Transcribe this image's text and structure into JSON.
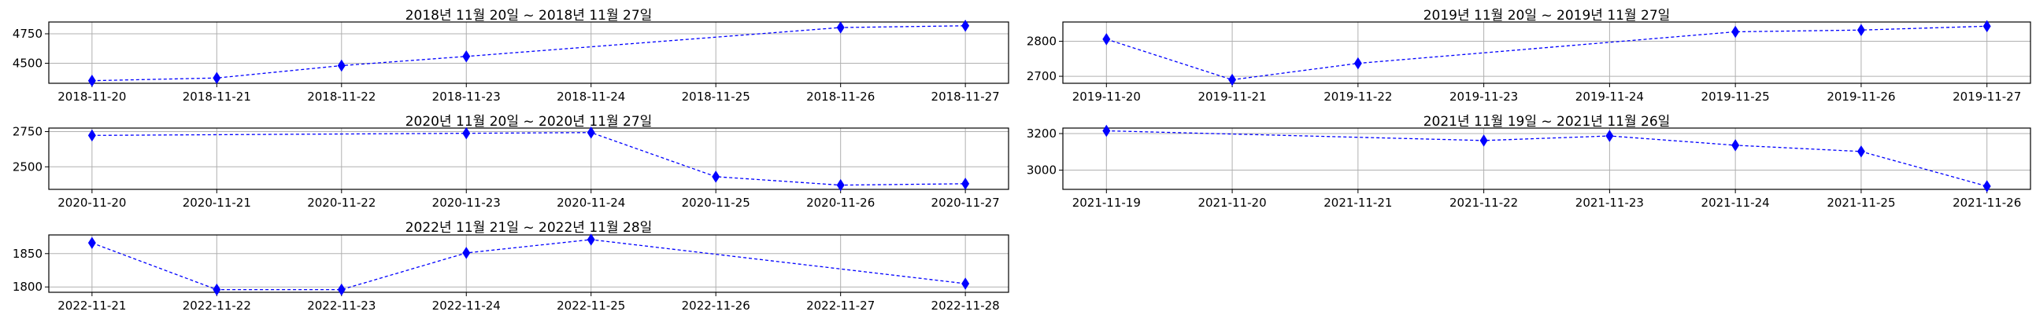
{
  "chart_data": [
    {
      "type": "line",
      "title": "2018년 11월 20일 ~ 2018년 11월 27일",
      "categories": [
        "2018-11-20",
        "2018-11-21",
        "2018-11-22",
        "2018-11-23",
        "2018-11-24",
        "2018-11-25",
        "2018-11-26",
        "2018-11-27"
      ],
      "series": [
        {
          "x": [
            "2018-11-20",
            "2018-11-21",
            "2018-11-22",
            "2018-11-23",
            "2018-11-26",
            "2018-11-27"
          ],
          "values": [
            4352,
            4375,
            4480,
            4558,
            4803,
            4818
          ]
        }
      ],
      "yticks": [
        4500,
        4750
      ],
      "ylim": [
        4330,
        4850
      ],
      "grid": true,
      "color": "#0000ff"
    },
    {
      "type": "line",
      "title": "2019년 11월 20일 ~ 2019년 11월 27일",
      "categories": [
        "2019-11-20",
        "2019-11-21",
        "2019-11-22",
        "2019-11-23",
        "2019-11-24",
        "2019-11-25",
        "2019-11-26",
        "2019-11-27"
      ],
      "series": [
        {
          "x": [
            "2019-11-20",
            "2019-11-21",
            "2019-11-22",
            "2019-11-25",
            "2019-11-26",
            "2019-11-27"
          ],
          "values": [
            2806,
            2690,
            2737,
            2827,
            2832,
            2843
          ]
        }
      ],
      "yticks": [
        2700,
        2800
      ],
      "ylim": [
        2680,
        2855
      ],
      "grid": true,
      "color": "#0000ff"
    },
    {
      "type": "line",
      "title": "2020년 11월 20일 ~ 2020년 11월 27일",
      "categories": [
        "2020-11-20",
        "2020-11-21",
        "2020-11-22",
        "2020-11-23",
        "2020-11-24",
        "2020-11-25",
        "2020-11-26",
        "2020-11-27"
      ],
      "series": [
        {
          "x": [
            "2020-11-20",
            "2020-11-23",
            "2020-11-24",
            "2020-11-25",
            "2020-11-26",
            "2020-11-27"
          ],
          "values": [
            2723,
            2738,
            2743,
            2430,
            2370,
            2380
          ]
        }
      ],
      "yticks": [
        2500,
        2750
      ],
      "ylim": [
        2340,
        2775
      ],
      "grid": true,
      "color": "#0000ff"
    },
    {
      "type": "line",
      "title": "2021년 11월 19일 ~ 2021년 11월 26일",
      "categories": [
        "2021-11-19",
        "2021-11-20",
        "2021-11-21",
        "2021-11-22",
        "2021-11-23",
        "2021-11-24",
        "2021-11-25",
        "2021-11-26"
      ],
      "series": [
        {
          "x": [
            "2021-11-19",
            "2021-11-22",
            "2021-11-23",
            "2021-11-24",
            "2021-11-25",
            "2021-11-26"
          ],
          "values": [
            3215,
            3162,
            3187,
            3136,
            3102,
            2912
          ]
        }
      ],
      "yticks": [
        3000,
        3200
      ],
      "ylim": [
        2895,
        3230
      ],
      "grid": true,
      "color": "#0000ff"
    },
    {
      "type": "line",
      "title": "2022년 11월 21일 ~ 2022년 11월 28일",
      "categories": [
        "2022-11-21",
        "2022-11-22",
        "2022-11-23",
        "2022-11-24",
        "2022-11-25",
        "2022-11-26",
        "2022-11-27",
        "2022-11-28"
      ],
      "series": [
        {
          "x": [
            "2022-11-21",
            "2022-11-22",
            "2022-11-23",
            "2022-11-24",
            "2022-11-25",
            "2022-11-28"
          ],
          "values": [
            1866,
            1796,
            1796,
            1851,
            1871,
            1805
          ]
        }
      ],
      "yticks": [
        1800,
        1850
      ],
      "ylim": [
        1792,
        1878
      ],
      "grid": true,
      "color": "#0000ff"
    }
  ]
}
